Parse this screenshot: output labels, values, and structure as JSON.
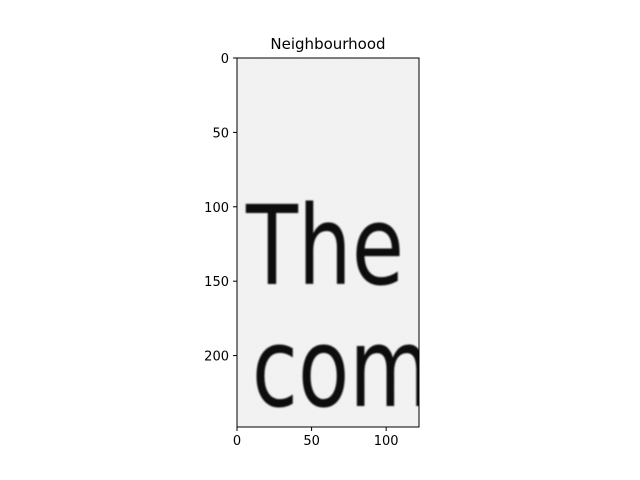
{
  "chart_data": {
    "type": "image",
    "title": "Neighbourhood",
    "image_width": 122,
    "image_height": 248,
    "xlim": [
      0,
      122
    ],
    "ylim": [
      248,
      0
    ],
    "x_ticks": [
      0,
      50,
      100
    ],
    "y_ticks": [
      0,
      50,
      100,
      150,
      200
    ],
    "grid": false,
    "image_text": [
      "The",
      "com"
    ],
    "colormap": "grayscale"
  }
}
